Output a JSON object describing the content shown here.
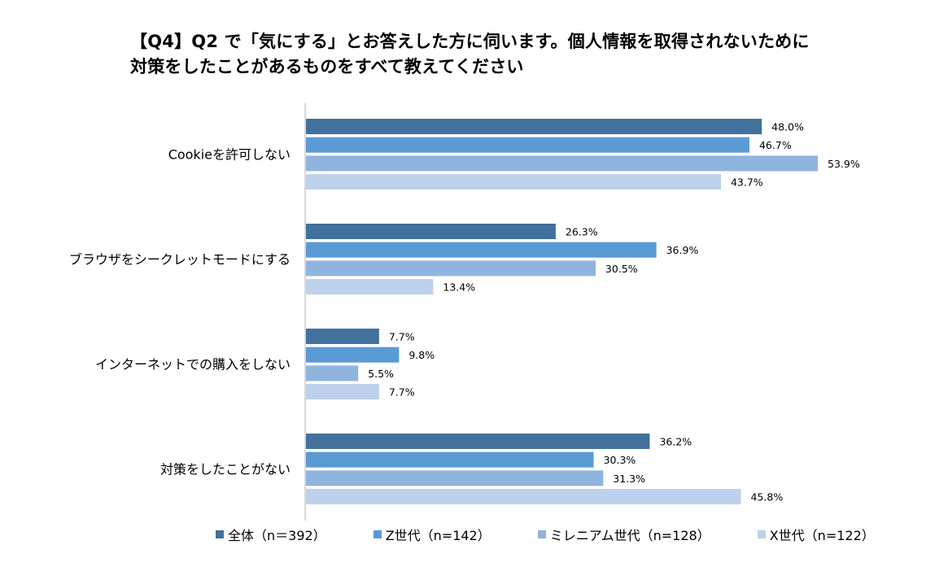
{
  "title": {
    "line1": "【Q4】Q2 で「気にする」とお答えした方に伺います。個人情報を取得されないために",
    "line2": "対策をしたことがあるものをすべて教えてください"
  },
  "chart_data": {
    "type": "bar",
    "orientation": "horizontal",
    "categories": [
      "Cookieを許可しない",
      "ブラウザをシークレットモードにする",
      "インターネットでの購入をしない",
      "対策をしたことがない"
    ],
    "series": [
      {
        "name": "全体（n＝392）",
        "color": "#41719c",
        "values": [
          48.0,
          26.3,
          7.7,
          36.2
        ]
      },
      {
        "name": "Z世代（n=142）",
        "color": "#5b9bd5",
        "values": [
          46.7,
          36.9,
          9.8,
          30.3
        ]
      },
      {
        "name": "ミレニアム世代（n=128）",
        "color": "#8fb4de",
        "values": [
          53.9,
          30.5,
          5.5,
          31.3
        ]
      },
      {
        "name": "X世代（n=122）",
        "color": "#bdd1ec",
        "values": [
          43.7,
          13.4,
          7.7,
          45.8
        ]
      }
    ],
    "value_suffix": "%",
    "xlim": [
      0,
      60
    ],
    "grid": false,
    "legend_position": "bottom"
  }
}
